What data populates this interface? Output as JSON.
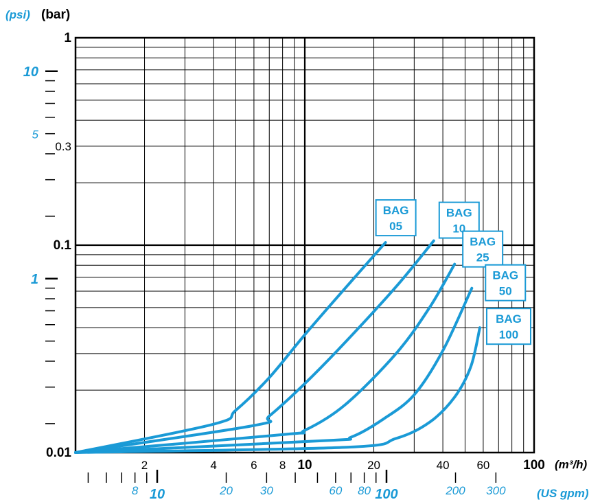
{
  "chart_data": {
    "type": "line",
    "xscale": "log",
    "yscale": "log",
    "xlim": [
      1,
      100
    ],
    "ylim": [
      0.01,
      1
    ],
    "x_unit": "(m³/h)",
    "x_unit_secondary": "(US gpm)",
    "y_unit": "(bar)",
    "y_unit_secondary": "(psi)",
    "x_ticks": [
      {
        "value": 2,
        "label": "2"
      },
      {
        "value": 4,
        "label": "4"
      },
      {
        "value": 6,
        "label": "6"
      },
      {
        "value": 8,
        "label": "8"
      },
      {
        "value": 10,
        "label": "10"
      },
      {
        "value": 20,
        "label": "20"
      },
      {
        "value": 40,
        "label": "40"
      },
      {
        "value": 60,
        "label": "60"
      },
      {
        "value": 100,
        "label": "100"
      }
    ],
    "x_ticks_secondary": [
      {
        "value": 8,
        "label": "8"
      },
      {
        "value": 10,
        "label": "10"
      },
      {
        "value": 20,
        "label": "20"
      },
      {
        "value": 30,
        "label": "30"
      },
      {
        "value": 60,
        "label": "60"
      },
      {
        "value": 80,
        "label": "80"
      },
      {
        "value": 100,
        "label": "100"
      },
      {
        "value": 200,
        "label": "200"
      },
      {
        "value": 300,
        "label": "300"
      }
    ],
    "y_ticks": [
      {
        "value": 1,
        "label": "1"
      },
      {
        "value": 0.3,
        "label": "0.3"
      },
      {
        "value": 0.1,
        "label": "0.1"
      },
      {
        "value": 0.01,
        "label": "0.01"
      }
    ],
    "y_ticks_secondary": [
      {
        "value": 10,
        "label": "10"
      },
      {
        "value": 5,
        "label": "5"
      },
      {
        "value": 1,
        "label": "1"
      }
    ],
    "grid": true,
    "series": [
      {
        "name": "BAG 05",
        "label_lines": [
          "BAG",
          "05"
        ],
        "points": [
          [
            1,
            0.01
          ],
          [
            4,
            0.0137
          ],
          [
            5,
            0.016
          ],
          [
            7,
            0.023
          ],
          [
            10,
            0.037
          ],
          [
            15,
            0.062
          ],
          [
            22.5,
            0.103
          ]
        ]
      },
      {
        "name": "BAG 10",
        "label_lines": [
          "BAG",
          "10"
        ],
        "points": [
          [
            1,
            0.01
          ],
          [
            6,
            0.0135
          ],
          [
            7,
            0.015
          ],
          [
            10,
            0.0215
          ],
          [
            15,
            0.034
          ],
          [
            25,
            0.063
          ],
          [
            36.5,
            0.105
          ]
        ]
      },
      {
        "name": "BAG 25",
        "label_lines": [
          "BAG",
          "25"
        ],
        "points": [
          [
            1,
            0.01
          ],
          [
            8,
            0.0122
          ],
          [
            10,
            0.0128
          ],
          [
            15,
            0.017
          ],
          [
            25,
            0.03
          ],
          [
            35,
            0.05
          ],
          [
            45,
            0.081
          ]
        ]
      },
      {
        "name": "BAG 50",
        "label_lines": [
          "BAG",
          "50"
        ],
        "points": [
          [
            1,
            0.01
          ],
          [
            12,
            0.0114
          ],
          [
            16,
            0.0119
          ],
          [
            22,
            0.0145
          ],
          [
            30,
            0.019
          ],
          [
            40,
            0.031
          ],
          [
            53.5,
            0.062
          ]
        ]
      },
      {
        "name": "BAG 100",
        "label_lines": [
          "BAG",
          "100"
        ],
        "points": [
          [
            1,
            0.01
          ],
          [
            15,
            0.0106
          ],
          [
            25,
            0.0117
          ],
          [
            35,
            0.014
          ],
          [
            45,
            0.0185
          ],
          [
            53,
            0.026
          ],
          [
            58,
            0.04
          ]
        ]
      }
    ],
    "colors": {
      "curve": "#1a9ad6",
      "grid": "#000000"
    }
  }
}
